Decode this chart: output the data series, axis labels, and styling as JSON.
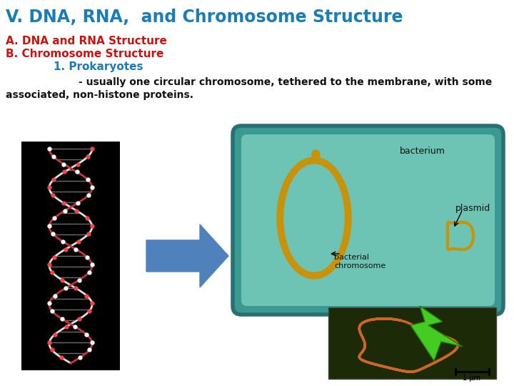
{
  "title": "V. DNA, RNA,  and Chromosome Structure",
  "title_color": "#1B7DB8",
  "line2": "A. DNA and RNA Structure",
  "line2_color": "#CC1111",
  "line3": "B. Chromosome Structure",
  "line3_color": "#CC1111",
  "line4": "1. Prokaryotes",
  "line4_color": "#1B7DB8",
  "line5": "- usually one circular chromosome, tethered to the membrane, with some",
  "line5b": "associated, non-histone proteins.",
  "line5_color": "#111111",
  "background_color": "#FFFFFF",
  "title_fontsize": 17,
  "body_fontsize": 11,
  "body_fontsize_sm": 10
}
